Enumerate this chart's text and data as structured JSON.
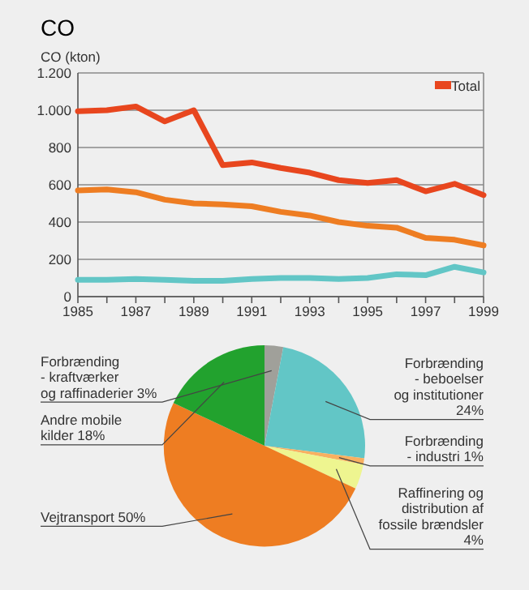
{
  "chart_data": [
    {
      "type": "line",
      "title": "CO",
      "ylabel": "CO (kton)",
      "x": [
        1985,
        1986,
        1987,
        1988,
        1989,
        1990,
        1991,
        1992,
        1993,
        1994,
        1995,
        1996,
        1997,
        1998,
        1999
      ],
      "series": [
        {
          "name": "Total",
          "color": "#e8461e",
          "values": [
            995,
            1000,
            1020,
            940,
            1000,
            705,
            720,
            690,
            665,
            625,
            610,
            625,
            565,
            605,
            545
          ]
        },
        {
          "color": "#ee7d22",
          "values": [
            570,
            575,
            560,
            520,
            500,
            495,
            485,
            455,
            435,
            400,
            380,
            370,
            315,
            305,
            275
          ]
        },
        {
          "color": "#62c6c6",
          "values": [
            90,
            90,
            95,
            90,
            85,
            85,
            95,
            100,
            100,
            95,
            100,
            120,
            115,
            160,
            130
          ]
        }
      ],
      "xlim": [
        1985,
        1999
      ],
      "xticks": [
        1985,
        {
          "value": 1986,
          "label": null
        },
        1987,
        {
          "value": 1988,
          "label": null
        },
        1989,
        {
          "value": 1990,
          "label": null
        },
        1991,
        {
          "value": 1992,
          "label": null
        },
        1993,
        {
          "value": 1994,
          "label": null
        },
        1995,
        {
          "value": 1996,
          "label": null
        },
        1997,
        {
          "value": 1998,
          "label": null
        },
        1999
      ],
      "ylim": [
        0,
        1200
      ],
      "yticks": [
        0,
        200,
        400,
        600,
        800,
        {
          "value": 1000,
          "label": "1.000"
        },
        {
          "value": 1200,
          "label": "1.200"
        }
      ],
      "grid": "y",
      "legend": "top right"
    },
    {
      "type": "pie",
      "categories": [
        "Forbrænding\n- kraftværker\nog raffinaderier",
        "Forbrænding\n- beboelser\nog institutioner",
        "Forbrænding\n- industri",
        "Raffinering og\ndistribution af\nfossile brændsler",
        "Vejtransport",
        "Andre mobile\nkilder"
      ],
      "values": [
        3,
        24,
        1,
        4,
        50,
        18
      ],
      "value_labels": [
        "3%",
        "24%",
        "1%",
        "4%",
        "50%",
        "18%"
      ],
      "colors": [
        "#a0a09a",
        "#62c6c6",
        "#f8b060",
        "#eef590",
        "#ee7d22",
        "#22a22e"
      ]
    }
  ]
}
